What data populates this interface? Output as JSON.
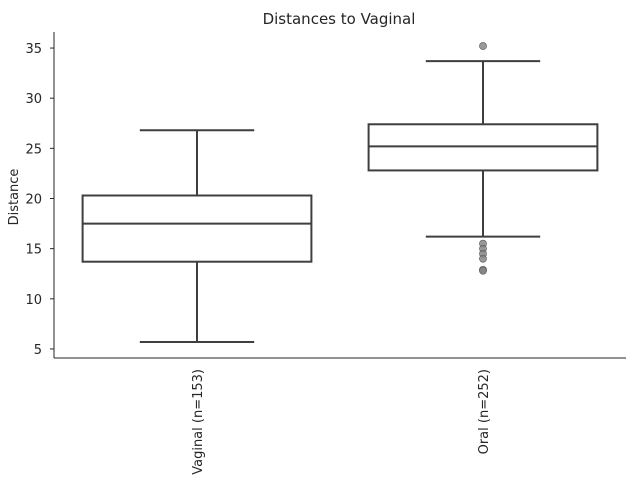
{
  "chart_data": {
    "type": "box",
    "title": "Distances to Vaginal",
    "xlabel": "",
    "ylabel": "Distance",
    "ylim": [
      4.1,
      36.6
    ],
    "yticks": [
      5,
      10,
      15,
      20,
      25,
      30,
      35
    ],
    "categories": [
      "Vaginal (n=153)",
      "Oral (n=252)"
    ],
    "boxes": [
      {
        "category": "Vaginal (n=153)",
        "whisker_low": 5.7,
        "q1": 13.7,
        "median": 17.5,
        "q3": 20.3,
        "whisker_high": 26.8,
        "outliers": []
      },
      {
        "category": "Oral (n=252)",
        "whisker_low": 16.2,
        "q1": 22.8,
        "median": 25.2,
        "q3": 27.4,
        "whisker_high": 33.7,
        "outliers": [
          35.2,
          15.5,
          15.0,
          14.5,
          14.0,
          12.9,
          12.8
        ]
      }
    ],
    "colors": {
      "box_edge": "#3f3f3f",
      "box_fill": "#ffffff",
      "outlier": "#7f7f7f"
    },
    "grid": false,
    "legend": "none"
  }
}
